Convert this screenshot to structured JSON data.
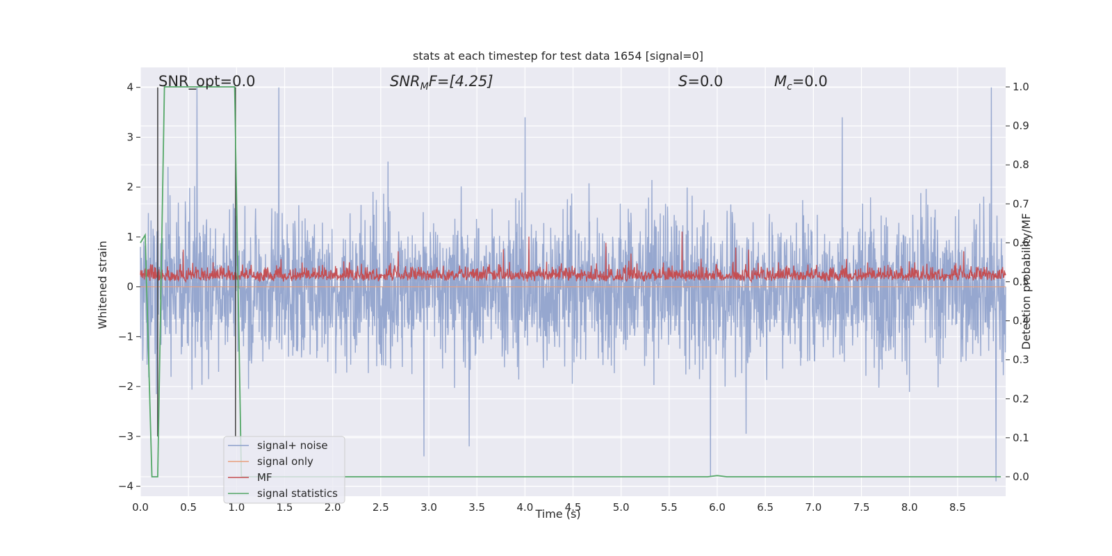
{
  "chart_data": {
    "type": "line",
    "title": "stats at each timestep for test data 1654 [signal=0]",
    "xlabel": "Time (s)",
    "ylabel_left": "Whitened strain",
    "ylabel_right": "Detection probability/MF",
    "xlim": [
      0.0,
      9.0
    ],
    "ylim_left": [
      -4.2,
      4.4
    ],
    "ylim_right": [
      -0.05,
      1.05
    ],
    "x_ticks": [
      0.0,
      0.5,
      1.0,
      1.5,
      2.0,
      2.5,
      3.0,
      3.5,
      4.0,
      4.5,
      5.0,
      5.5,
      6.0,
      6.5,
      7.0,
      7.5,
      8.0,
      8.5
    ],
    "x_tick_labels": [
      "0.0",
      "0.5",
      "1.0",
      "1.5",
      "2.0",
      "2.5",
      "3.0",
      "3.5",
      "4.0",
      "4.5",
      "5.0",
      "5.5",
      "6.0",
      "6.5",
      "7.0",
      "7.5",
      "8.0",
      "8.5"
    ],
    "y_left_ticks": [
      -4,
      -3,
      -2,
      -1,
      0,
      1,
      2,
      3,
      4
    ],
    "y_left_tick_labels": [
      "−4",
      "−3",
      "−2",
      "−1",
      "0",
      "1",
      "2",
      "3",
      "4"
    ],
    "y_right_ticks": [
      0.0,
      0.1,
      0.2,
      0.3,
      0.4,
      0.5,
      0.6,
      0.7,
      0.8,
      0.9,
      1.0
    ],
    "y_right_tick_labels": [
      "0.0",
      "0.1",
      "0.2",
      "0.3",
      "0.4",
      "0.5",
      "0.6",
      "0.7",
      "0.8",
      "0.9",
      "1.0"
    ],
    "grid": true,
    "legend_placement": "lower-left",
    "annotations": {
      "snr_opt": "SNR_opt=0.0",
      "snr_mf_main": "SNR",
      "snr_mf_sub": "M",
      "snr_mf_rest": "F=[4.25]",
      "s_main": "S",
      "s_rest": "=0.0",
      "mc_main": "M",
      "mc_sub": "c",
      "mc_rest": "=0.0"
    },
    "series": [
      {
        "name": "signal+ noise",
        "color": "#8da0cb",
        "axis": "left",
        "description_of_values": "whitened noise strain, roughly within [-2.5, 2.5] with peaks near ±4",
        "peak_points": [
          [
            0.59,
            4.0
          ],
          [
            1.44,
            4.0
          ],
          [
            2.95,
            -3.4
          ],
          [
            3.42,
            -3.2
          ],
          [
            4.0,
            3.4
          ],
          [
            5.93,
            -3.8
          ],
          [
            7.3,
            3.4
          ],
          [
            8.85,
            4.0
          ],
          [
            8.9,
            -3.9
          ]
        ]
      },
      {
        "name": "signal only",
        "color": "#e8a07e",
        "axis": "left",
        "values_constant": 0.0
      },
      {
        "name": "MF",
        "color": "#c44e52",
        "axis": "right",
        "description_of_values": "matched-filter output fluctuating between about 0.50 and 0.63"
      },
      {
        "name": "signal statistics",
        "color": "#55a868",
        "axis": "right",
        "x": [
          0.0,
          0.05,
          0.12,
          0.18,
          0.25,
          0.98,
          1.05,
          1.1,
          5.9,
          6.0,
          6.1,
          8.8,
          8.95
        ],
        "values": [
          0.6,
          0.62,
          0.0,
          0.0,
          1.0,
          1.0,
          0.0,
          0.0,
          0.0,
          0.003,
          0.0,
          0.0,
          0.0
        ]
      }
    ],
    "vertical_lines": [
      0.18,
      0.99
    ]
  }
}
